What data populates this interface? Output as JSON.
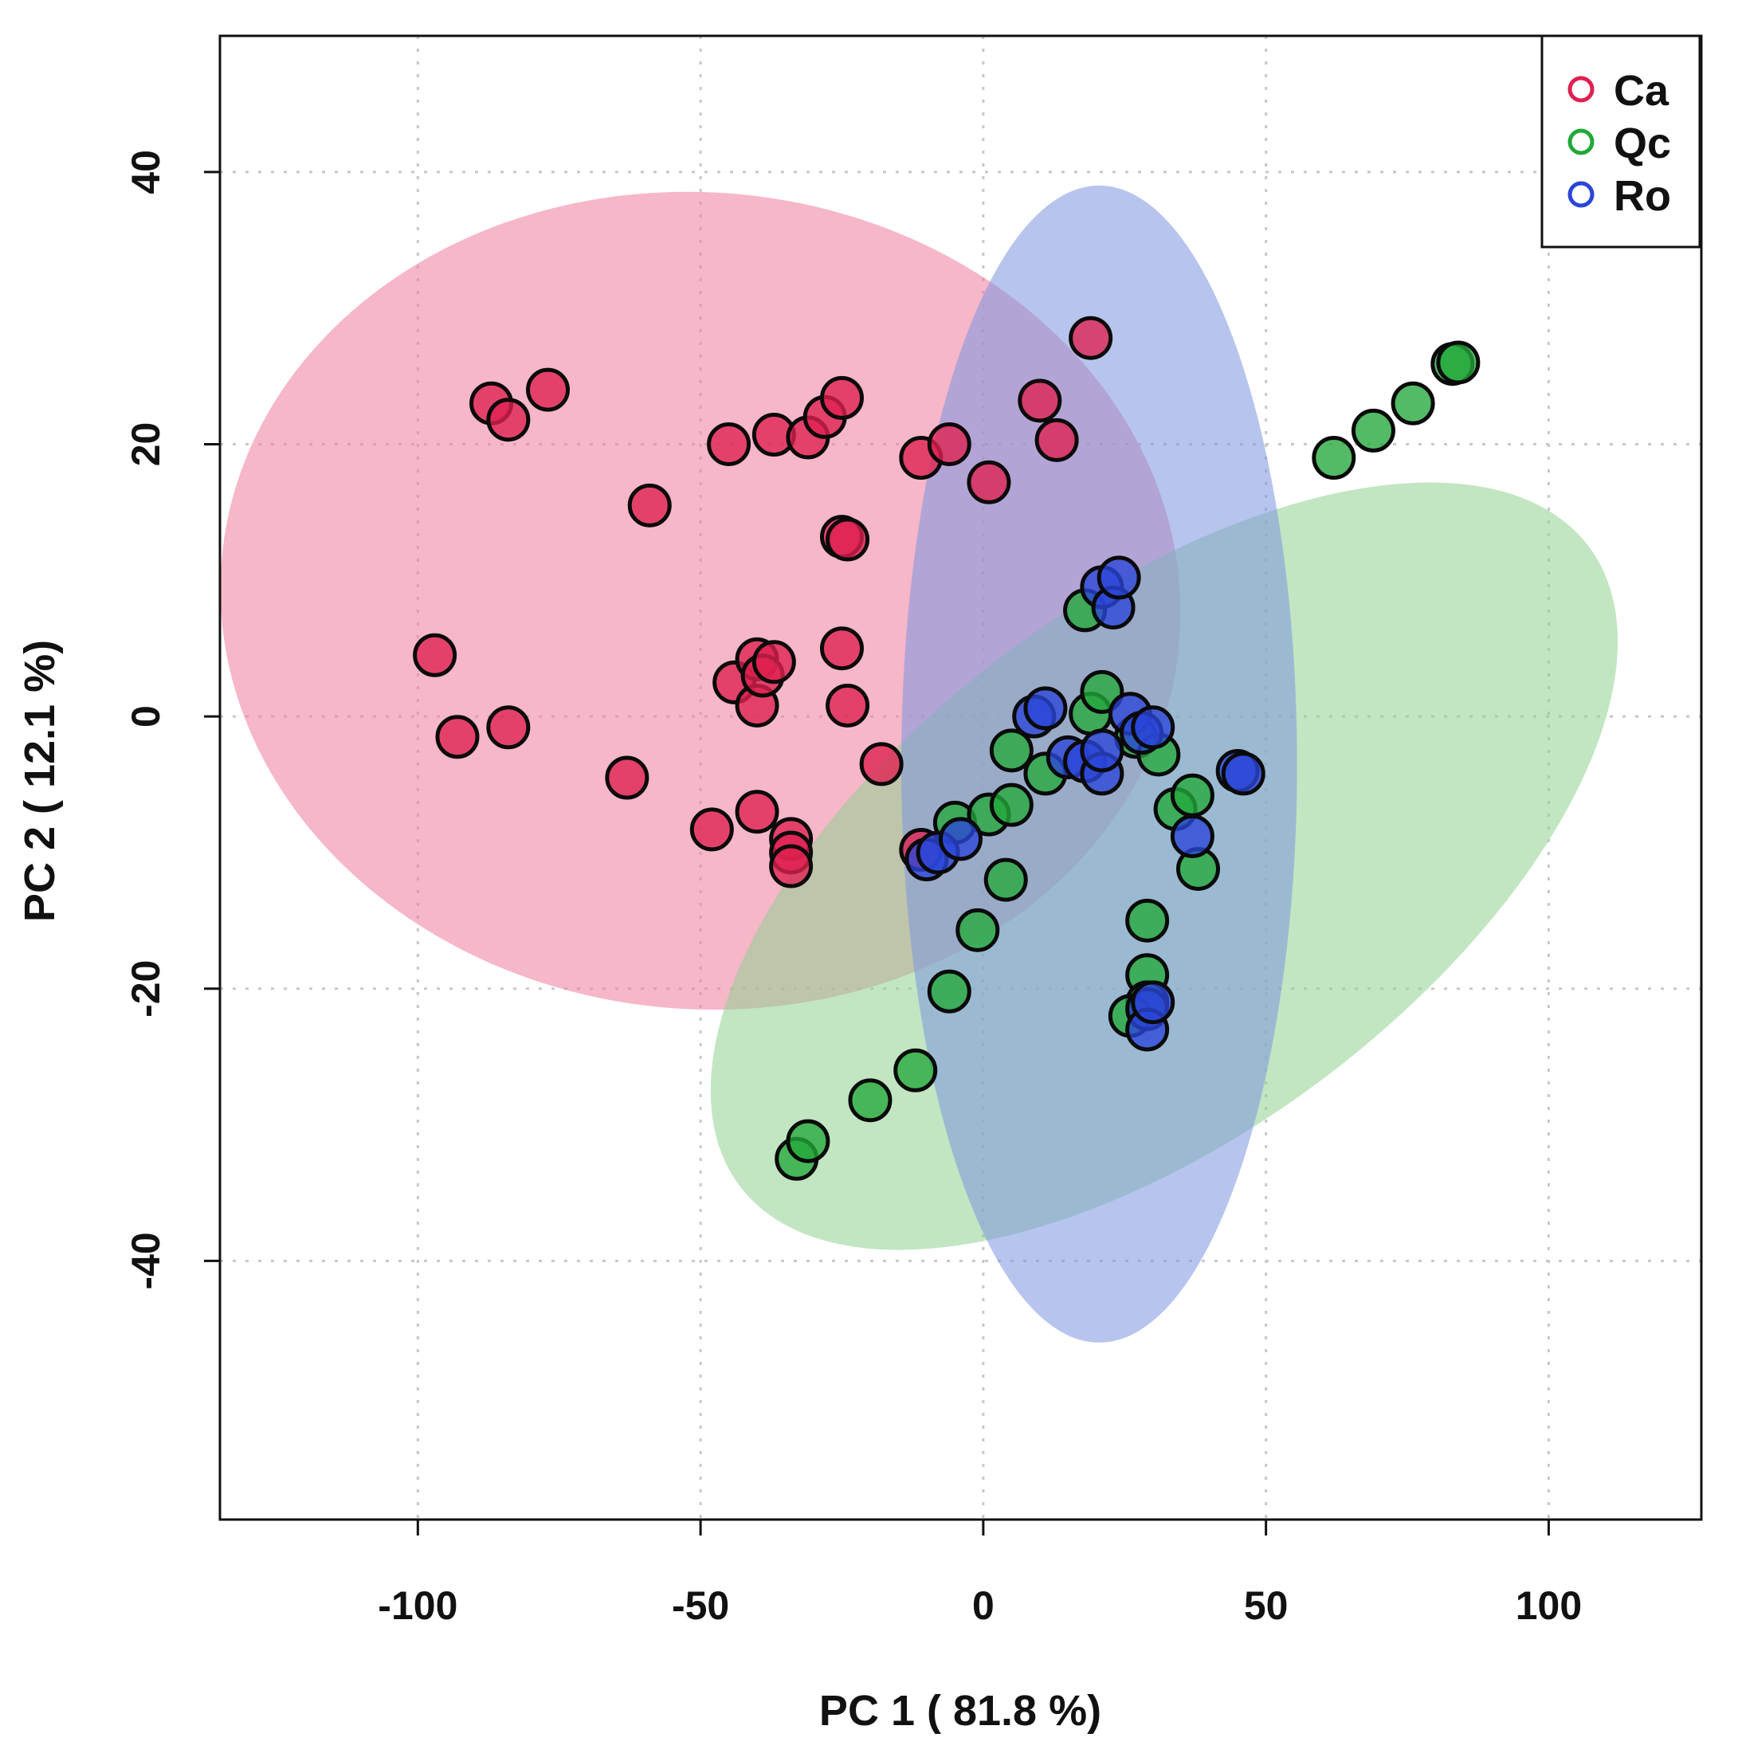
{
  "chart_data": {
    "type": "scatter",
    "title": "",
    "xlabel": "PC 1 ( 81.8 %)",
    "ylabel": "PC 2 ( 12.1 %)",
    "xlim": [
      -135,
      127
    ],
    "ylim": [
      -59,
      50
    ],
    "xticks": [
      -100,
      -50,
      0,
      50,
      100
    ],
    "yticks": [
      -40,
      -20,
      0,
      20,
      40
    ],
    "xtick_labels": [
      "-100",
      "-50",
      "0",
      "50",
      "100"
    ],
    "ytick_labels": [
      "-40",
      "-20",
      "0",
      "20",
      "40"
    ],
    "grid": true,
    "legend_position": "top-right",
    "series": [
      {
        "name": "Ca",
        "color": "#df2050",
        "ellipse": {
          "cx": -50,
          "cy": 8.5,
          "rx": 85,
          "ry": 30,
          "angle": -5,
          "fill": "#ee7c9c"
        },
        "points": [
          {
            "x": -97,
            "y": 4.5
          },
          {
            "x": -93,
            "y": -1.5
          },
          {
            "x": -84,
            "y": -0.8
          },
          {
            "x": -87,
            "y": 23
          },
          {
            "x": -84,
            "y": 21.8
          },
          {
            "x": -77,
            "y": 24
          },
          {
            "x": -63,
            "y": -4.5
          },
          {
            "x": -59,
            "y": 15.5
          },
          {
            "x": -48,
            "y": -8.3
          },
          {
            "x": -45,
            "y": 20
          },
          {
            "x": -44,
            "y": 2.5
          },
          {
            "x": -40,
            "y": 4.2
          },
          {
            "x": -40,
            "y": 0.8
          },
          {
            "x": -39,
            "y": 3
          },
          {
            "x": -37,
            "y": 4
          },
          {
            "x": -40,
            "y": -7
          },
          {
            "x": -37,
            "y": 20.7
          },
          {
            "x": -34,
            "y": -9
          },
          {
            "x": -34,
            "y": -10
          },
          {
            "x": -34,
            "y": -11
          },
          {
            "x": -31,
            "y": 20.5
          },
          {
            "x": -28,
            "y": 22
          },
          {
            "x": -25,
            "y": 23.4
          },
          {
            "x": -25,
            "y": 13.2
          },
          {
            "x": -24,
            "y": 13
          },
          {
            "x": -25,
            "y": 5
          },
          {
            "x": -24,
            "y": 0.8
          },
          {
            "x": -18,
            "y": -3.5
          },
          {
            "x": -11,
            "y": -9.8
          },
          {
            "x": -11,
            "y": 19
          },
          {
            "x": -6,
            "y": 20
          },
          {
            "x": 1,
            "y": 17.2
          },
          {
            "x": 10,
            "y": 23.2
          },
          {
            "x": 13,
            "y": 20.3
          },
          {
            "x": 19,
            "y": 27.8
          }
        ]
      },
      {
        "name": "Qc",
        "color": "#22a83a",
        "ellipse": {
          "cx": 32,
          "cy": -11,
          "rx": 94,
          "ry": 19.5,
          "angle": 37,
          "fill": "#8fd18f"
        },
        "points": [
          {
            "x": -33,
            "y": -32.5
          },
          {
            "x": -31,
            "y": -31.2
          },
          {
            "x": -20,
            "y": -28.2
          },
          {
            "x": -12,
            "y": -26
          },
          {
            "x": -6,
            "y": -20.2
          },
          {
            "x": -1,
            "y": -15.7
          },
          {
            "x": 4,
            "y": -12
          },
          {
            "x": -5,
            "y": -7.8
          },
          {
            "x": 1,
            "y": -7.2
          },
          {
            "x": 5,
            "y": -6.5
          },
          {
            "x": 5,
            "y": -2.5
          },
          {
            "x": 11,
            "y": -4.2
          },
          {
            "x": 18,
            "y": 7.8
          },
          {
            "x": 19,
            "y": 0.2
          },
          {
            "x": 21,
            "y": 1.8
          },
          {
            "x": 27,
            "y": -1.5
          },
          {
            "x": 31,
            "y": -2.8
          },
          {
            "x": 34,
            "y": -6.8
          },
          {
            "x": 37,
            "y": -5.8
          },
          {
            "x": 38,
            "y": -11.2
          },
          {
            "x": 29,
            "y": -15
          },
          {
            "x": 29,
            "y": -19
          },
          {
            "x": 29,
            "y": -21
          },
          {
            "x": 26,
            "y": -22
          },
          {
            "x": 62,
            "y": 19
          },
          {
            "x": 69,
            "y": 21
          },
          {
            "x": 76,
            "y": 23
          },
          {
            "x": 83,
            "y": 25.9
          },
          {
            "x": 84,
            "y": 26
          }
        ]
      },
      {
        "name": "Ro",
        "color": "#2a45d8",
        "ellipse": {
          "cx": 20.5,
          "cy": -3.5,
          "rx": 35,
          "ry": 42.5,
          "angle": 0,
          "fill": "#7b95e0"
        },
        "points": [
          {
            "x": -10,
            "y": -10.5
          },
          {
            "x": -8,
            "y": -10
          },
          {
            "x": -4,
            "y": -9
          },
          {
            "x": 9,
            "y": 0
          },
          {
            "x": 11,
            "y": 0.6
          },
          {
            "x": 15,
            "y": -3
          },
          {
            "x": 18,
            "y": -3.3
          },
          {
            "x": 21,
            "y": -4.2
          },
          {
            "x": 21,
            "y": -2.5
          },
          {
            "x": 21,
            "y": 9.5
          },
          {
            "x": 23,
            "y": 8
          },
          {
            "x": 24,
            "y": 10.2
          },
          {
            "x": 26,
            "y": 0.2
          },
          {
            "x": 28,
            "y": -1.2
          },
          {
            "x": 30,
            "y": -0.8
          },
          {
            "x": 37,
            "y": -8.8
          },
          {
            "x": 45,
            "y": -4
          },
          {
            "x": 46,
            "y": -4.2
          },
          {
            "x": 29,
            "y": -21.5
          },
          {
            "x": 29,
            "y": -23
          },
          {
            "x": 30,
            "y": -21
          }
        ]
      }
    ]
  }
}
